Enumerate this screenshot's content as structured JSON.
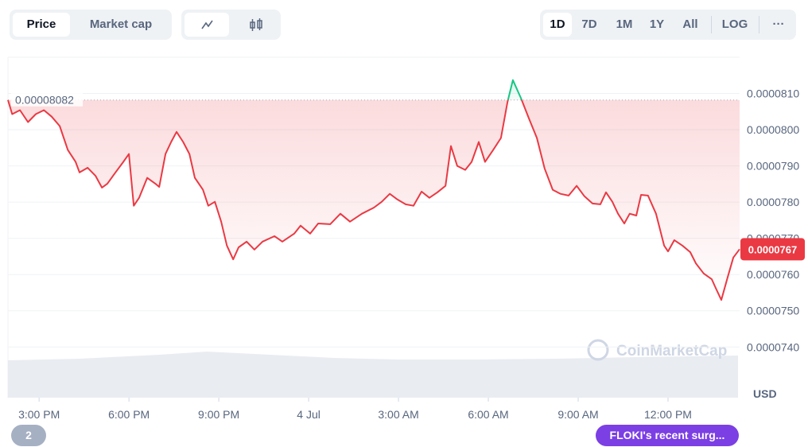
{
  "ui": {
    "tabs": [
      "Price",
      "Market cap"
    ],
    "ranges": [
      "1D",
      "7D",
      "1M",
      "1Y",
      "All"
    ],
    "log_button": "LOG",
    "more_button": "···",
    "history_badge": "2",
    "news_button": "FLOKI's recent surg...",
    "watermark": "CoinMarketCap"
  },
  "chart_data": {
    "type": "line",
    "currency": "USD",
    "up_color": "#16c784",
    "down_color": "#ea3943",
    "reference_value": 8.082e-05,
    "current_value": 7.67e-05,
    "xlim": [
      13.96,
      38.39
    ],
    "xticks": [
      {
        "value": 15,
        "label": "3:00 PM"
      },
      {
        "value": 18,
        "label": "6:00 PM"
      },
      {
        "value": 21,
        "label": "9:00 PM"
      },
      {
        "value": 24,
        "label": "4 Jul"
      },
      {
        "value": 27,
        "label": "3:00 AM"
      },
      {
        "value": 30,
        "label": "6:00 AM"
      },
      {
        "value": 33,
        "label": "9:00 AM"
      },
      {
        "value": 36,
        "label": "12:00 PM"
      }
    ],
    "ylim": [
      7.26e-05,
      8.2e-05
    ],
    "yticks": [
      {
        "value": 7.4e-05,
        "label": "0.0000740"
      },
      {
        "value": 7.5e-05,
        "label": "0.0000750"
      },
      {
        "value": 7.6e-05,
        "label": "0.0000760"
      },
      {
        "value": 7.7e-05,
        "label": "0.0000770"
      },
      {
        "value": 7.8e-05,
        "label": "0.0000780"
      },
      {
        "value": 7.9e-05,
        "label": "0.0000790"
      },
      {
        "value": 8e-05,
        "label": "0.0000800"
      },
      {
        "value": 8.1e-05,
        "label": "0.0000810"
      }
    ],
    "x": [
      13.96,
      14.1,
      14.36,
      14.63,
      14.89,
      15.16,
      15.42,
      15.69,
      15.96,
      16.22,
      16.35,
      16.62,
      16.88,
      17.1,
      17.28,
      17.55,
      17.81,
      18.0,
      18.16,
      18.34,
      18.61,
      18.88,
      19.01,
      19.22,
      19.41,
      19.59,
      19.81,
      20.02,
      20.2,
      20.47,
      20.65,
      20.87,
      21.08,
      21.27,
      21.48,
      21.66,
      21.93,
      22.19,
      22.46,
      22.86,
      23.12,
      23.52,
      23.73,
      24.05,
      24.32,
      24.72,
      25.06,
      25.38,
      25.78,
      26.18,
      26.44,
      26.71,
      26.97,
      27.24,
      27.5,
      27.77,
      28.03,
      28.3,
      28.57,
      28.75,
      28.96,
      29.23,
      29.44,
      29.68,
      29.89,
      30.16,
      30.42,
      30.64,
      30.82,
      31.09,
      31.35,
      31.62,
      31.88,
      32.15,
      32.41,
      32.68,
      32.95,
      33.21,
      33.48,
      33.74,
      33.93,
      34.14,
      34.33,
      34.54,
      34.72,
      34.94,
      35.1,
      35.33,
      35.6,
      35.87,
      36.0,
      36.21,
      36.48,
      36.74,
      36.93,
      37.19,
      37.46,
      37.59,
      37.78,
      37.99,
      38.18,
      38.39
    ],
    "values": [
      8.082e-05,
      8.043e-05,
      8.054e-05,
      8.021e-05,
      8.043e-05,
      8.054e-05,
      8.036e-05,
      8.01e-05,
      7.944e-05,
      7.911e-05,
      7.882e-05,
      7.895e-05,
      7.873e-05,
      7.84e-05,
      7.851e-05,
      7.882e-05,
      7.911e-05,
      7.933e-05,
      7.79e-05,
      7.812e-05,
      7.867e-05,
      7.851e-05,
      7.842e-05,
      7.933e-05,
      7.966e-05,
      7.994e-05,
      7.966e-05,
      7.933e-05,
      7.867e-05,
      7.834e-05,
      7.79e-05,
      7.801e-05,
      7.746e-05,
      7.68e-05,
      7.642e-05,
      7.675e-05,
      7.691e-05,
      7.669e-05,
      7.691e-05,
      7.706e-05,
      7.691e-05,
      7.713e-05,
      7.735e-05,
      7.713e-05,
      7.741e-05,
      7.739e-05,
      7.768e-05,
      7.746e-05,
      7.768e-05,
      7.785e-05,
      7.801e-05,
      7.823e-05,
      7.807e-05,
      7.794e-05,
      7.79e-05,
      7.829e-05,
      7.812e-05,
      7.827e-05,
      7.845e-05,
      7.955e-05,
      7.9e-05,
      7.889e-05,
      7.911e-05,
      7.966e-05,
      7.911e-05,
      7.944e-05,
      7.977e-05,
      8.076e-05,
      8.137e-05,
      8.087e-05,
      8.032e-05,
      7.977e-05,
      7.893e-05,
      7.834e-05,
      7.823e-05,
      7.818e-05,
      7.845e-05,
      7.816e-05,
      7.796e-05,
      7.794e-05,
      7.827e-05,
      7.801e-05,
      7.768e-05,
      7.741e-05,
      7.768e-05,
      7.763e-05,
      7.82e-05,
      7.818e-05,
      7.768e-05,
      7.68e-05,
      7.664e-05,
      7.695e-05,
      7.68e-05,
      7.662e-05,
      7.631e-05,
      7.603e-05,
      7.587e-05,
      7.563e-05,
      7.53e-05,
      7.592e-05,
      7.647e-05,
      7.67e-05
    ]
  }
}
